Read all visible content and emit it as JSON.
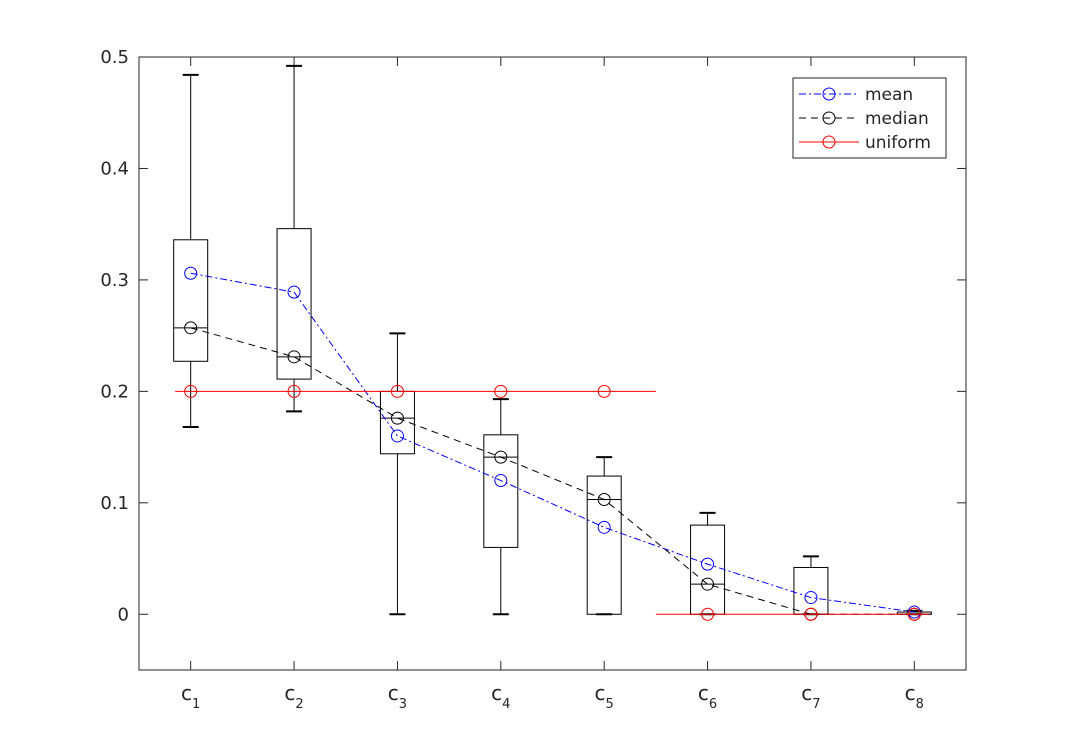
{
  "chart_data": {
    "type": "box",
    "categories": [
      "c1",
      "c2",
      "c3",
      "c4",
      "c5",
      "c6",
      "c7",
      "c8"
    ],
    "xtick_labels": [
      {
        "base": "c",
        "sub": "1"
      },
      {
        "base": "c",
        "sub": "2"
      },
      {
        "base": "c",
        "sub": "3"
      },
      {
        "base": "c",
        "sub": "4"
      },
      {
        "base": "c",
        "sub": "5"
      },
      {
        "base": "c",
        "sub": "6"
      },
      {
        "base": "c",
        "sub": "7"
      },
      {
        "base": "c",
        "sub": "8"
      }
    ],
    "ylim": [
      -0.05,
      0.5
    ],
    "yticks": [
      0,
      0.1,
      0.2,
      0.3,
      0.4,
      0.5
    ],
    "ytick_labels": [
      "0",
      "0.1",
      "0.2",
      "0.3",
      "0.4",
      "0.5"
    ],
    "boxes": [
      {
        "whisker_low": 0.168,
        "q1": 0.227,
        "median": 0.257,
        "q3": 0.336,
        "whisker_high": 0.484
      },
      {
        "whisker_low": 0.182,
        "q1": 0.211,
        "median": 0.231,
        "q3": 0.346,
        "whisker_high": 0.492
      },
      {
        "whisker_low": 0.0,
        "q1": 0.144,
        "median": 0.176,
        "q3": 0.2,
        "whisker_high": 0.252
      },
      {
        "whisker_low": 0.0,
        "q1": 0.06,
        "median": 0.141,
        "q3": 0.161,
        "whisker_high": 0.193
      },
      {
        "whisker_low": 0.0,
        "q1": 0.0,
        "median": 0.103,
        "q3": 0.124,
        "whisker_high": 0.141
      },
      {
        "whisker_low": 0.0,
        "q1": 0.0,
        "median": 0.027,
        "q3": 0.08,
        "whisker_high": 0.091
      },
      {
        "whisker_low": 0.0,
        "q1": 0.0,
        "median": 0.0,
        "q3": 0.042,
        "whisker_high": 0.052
      },
      {
        "whisker_low": 0.0,
        "q1": 0.0,
        "median": 0.0,
        "q3": 0.002,
        "whisker_high": 0.003
      }
    ],
    "series": [
      {
        "name": "mean",
        "color": "#0000ff",
        "style": "dash-dot",
        "marker": "circle",
        "values": [
          0.306,
          0.289,
          0.16,
          0.12,
          0.078,
          0.045,
          0.015,
          0.002
        ]
      },
      {
        "name": "median",
        "color": "#000000",
        "style": "dashed",
        "marker": "circle",
        "values": [
          0.257,
          0.231,
          0.176,
          0.141,
          0.103,
          0.027,
          0.0,
          0.0
        ]
      },
      {
        "name": "uniform",
        "color": "#ff0000",
        "style": "solid",
        "marker": "circle",
        "segments": [
          {
            "x_start": 0.85,
            "x_end": 5.5,
            "points": [
              1,
              2,
              3,
              4,
              5
            ],
            "value": 0.2
          },
          {
            "x_start": 5.5,
            "x_end": 8.15,
            "points": [
              6,
              7,
              8
            ],
            "value": 0.0
          }
        ]
      }
    ],
    "legend": {
      "position": "top-right",
      "entries": [
        "mean",
        "median",
        "uniform"
      ]
    },
    "grid": false,
    "title": "",
    "xlabel": "",
    "ylabel": ""
  }
}
